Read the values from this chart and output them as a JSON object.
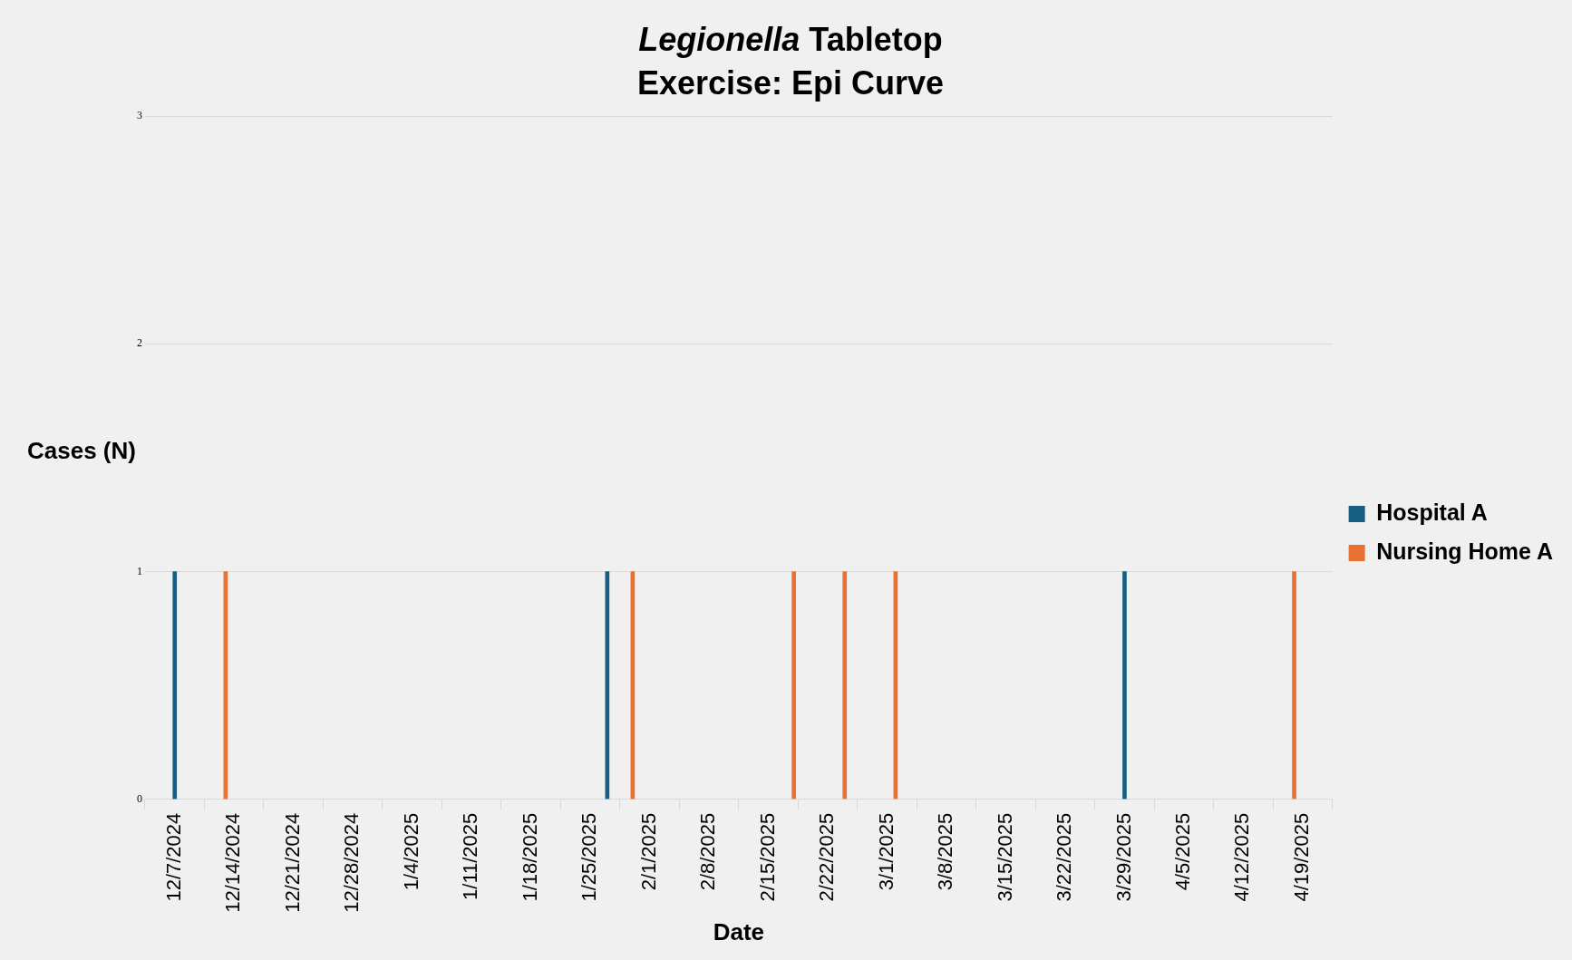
{
  "chart_data": {
    "type": "bar",
    "title": "Legionella Tabletop Exercise: Epi Curve",
    "xlabel": "Date",
    "ylabel": "Cases (N)",
    "series": [
      {
        "name": "Hospital A",
        "color": "#156082",
        "x": [
          "2024-12-07",
          "2025-01-27",
          "2025-03-29"
        ],
        "values": [
          1,
          1,
          1
        ]
      },
      {
        "name": "Nursing Home A",
        "color": "#e97132",
        "x": [
          "2024-12-13",
          "2025-01-30",
          "2025-02-18",
          "2025-02-24",
          "2025-03-02",
          "2025-04-18"
        ],
        "values": [
          1,
          1,
          1,
          1,
          1,
          1
        ]
      }
    ],
    "xlim": [
      "2024-12-07",
      "2025-04-19"
    ],
    "xticks": [
      {
        "value": "2024-12-07",
        "label": "12/7/2024"
      },
      {
        "value": "2024-12-14",
        "label": "12/14/2024"
      },
      {
        "value": "2024-12-21",
        "label": "12/21/2024"
      },
      {
        "value": "2024-12-28",
        "label": "12/28/2024"
      },
      {
        "value": "2025-01-04",
        "label": "1/4/2025"
      },
      {
        "value": "2025-01-11",
        "label": "1/11/2025"
      },
      {
        "value": "2025-01-18",
        "label": "1/18/2025"
      },
      {
        "value": "2025-01-25",
        "label": "1/25/2025"
      },
      {
        "value": "2025-02-01",
        "label": "2/1/2025"
      },
      {
        "value": "2025-02-08",
        "label": "2/8/2025"
      },
      {
        "value": "2025-02-15",
        "label": "2/15/2025"
      },
      {
        "value": "2025-02-22",
        "label": "2/22/2025"
      },
      {
        "value": "2025-03-01",
        "label": "3/1/2025"
      },
      {
        "value": "2025-03-08",
        "label": "3/8/2025"
      },
      {
        "value": "2025-03-15",
        "label": "3/15/2025"
      },
      {
        "value": "2025-03-22",
        "label": "3/22/2025"
      },
      {
        "value": "2025-03-29",
        "label": "3/29/2025"
      },
      {
        "value": "2025-04-05",
        "label": "4/5/2025"
      },
      {
        "value": "2025-04-12",
        "label": "4/12/2025"
      },
      {
        "value": "2025-04-19",
        "label": "4/19/2025"
      }
    ],
    "ylim": [
      0,
      3
    ],
    "yticks": [
      0,
      1,
      2,
      3
    ],
    "grid": "y",
    "legend": "right"
  }
}
